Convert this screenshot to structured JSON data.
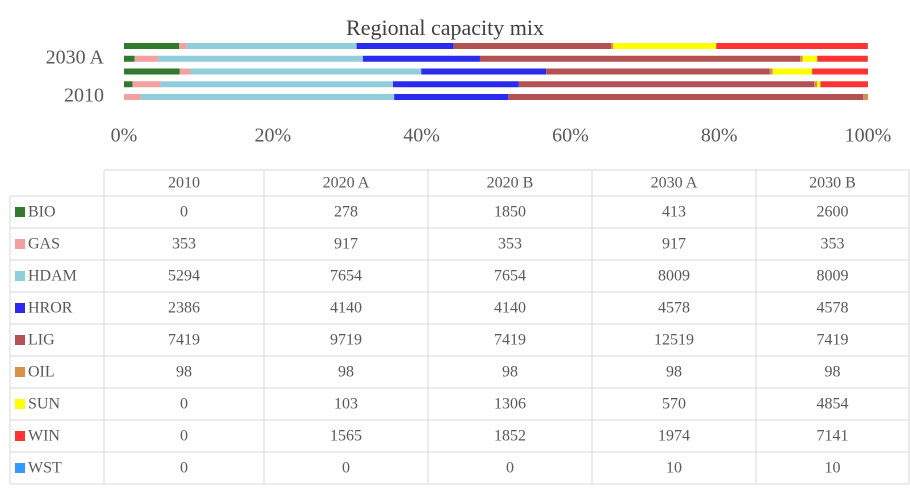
{
  "chart_data": {
    "type": "stacked-bar-100",
    "title": "Regional capacity mix",
    "categories": [
      "2010",
      "2020 A",
      "2020 B",
      "2030 A",
      "2030 B"
    ],
    "series": [
      {
        "name": "BIO",
        "color": "#31792f",
        "values": [
          0,
          278,
          1850,
          413,
          2600
        ]
      },
      {
        "name": "GAS",
        "color": "#f2a0a0",
        "values": [
          353,
          917,
          353,
          917,
          353
        ]
      },
      {
        "name": "HDAM",
        "color": "#92cddc",
        "values": [
          5294,
          7654,
          7654,
          8009,
          8009
        ]
      },
      {
        "name": "HROR",
        "color": "#2b2bf0",
        "values": [
          2386,
          4140,
          4140,
          4578,
          4578
        ]
      },
      {
        "name": "LIG",
        "color": "#b25252",
        "values": [
          7419,
          9719,
          7419,
          12519,
          7419
        ]
      },
      {
        "name": "OIL",
        "color": "#d9904a",
        "values": [
          98,
          98,
          98,
          98,
          98
        ]
      },
      {
        "name": "SUN",
        "color": "#ffff00",
        "values": [
          0,
          103,
          1306,
          570,
          4854
        ]
      },
      {
        "name": "WIN",
        "color": "#ff3333",
        "values": [
          0,
          1565,
          1852,
          1974,
          7141
        ]
      },
      {
        "name": "WST",
        "color": "#3399ff",
        "values": [
          0,
          0,
          0,
          10,
          10
        ]
      }
    ],
    "xlim": [
      0,
      100
    ],
    "xticks": [
      {
        "value": 0,
        "label": "0%"
      },
      {
        "value": 20,
        "label": "20%"
      },
      {
        "value": 40,
        "label": "40%"
      },
      {
        "value": 60,
        "label": "60%"
      },
      {
        "value": 80,
        "label": "80%"
      },
      {
        "value": 100,
        "label": "100%"
      }
    ],
    "y_labeled_categories": [
      3,
      0
    ]
  }
}
